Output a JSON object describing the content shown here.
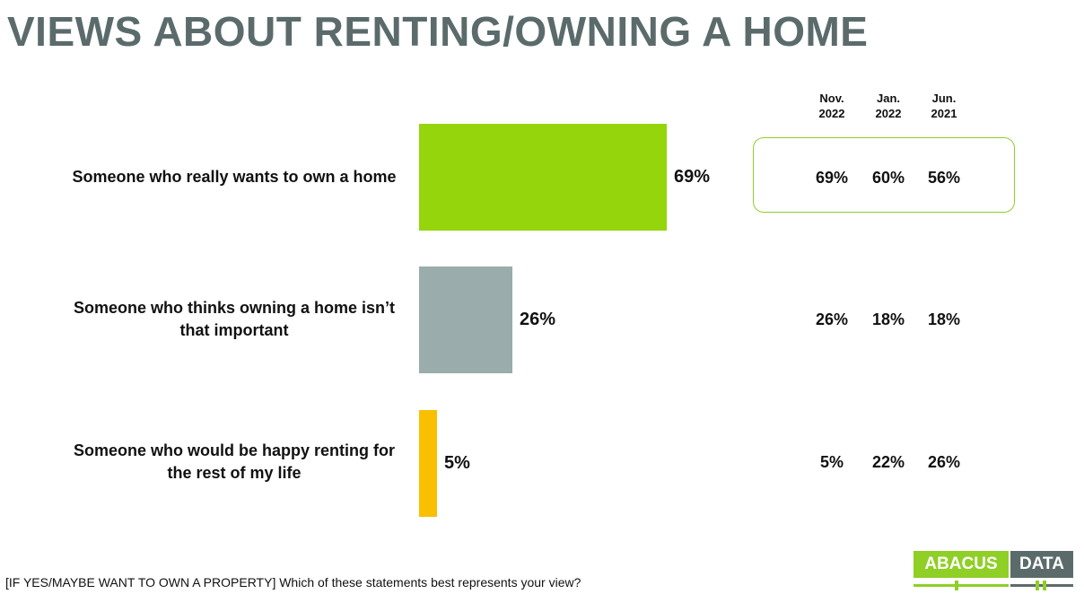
{
  "title": "VIEWS ABOUT RENTING/OWNING A HOME",
  "footnote": "[IF YES/MAYBE WANT TO OWN A PROPERTY] Which of these statements best represents your view?",
  "logo": {
    "left": "ABACUS",
    "right": "DATA"
  },
  "colors": {
    "title": "#5b6b6b",
    "green": "#94d50b",
    "gray": "#9aacab",
    "yellow": "#f9bf00",
    "outline": "#8fcf26"
  },
  "chart_data": {
    "type": "bar",
    "orientation": "horizontal",
    "categories": [
      "Someone who really wants to own a home",
      "Someone who thinks owning a home isn’t that important",
      "Someone who would be happy renting for the rest of my life"
    ],
    "values": [
      69,
      26,
      5
    ],
    "value_labels": [
      "69%",
      "26%",
      "5%"
    ],
    "bar_colors": [
      "#94d50b",
      "#9aacab",
      "#f9bf00"
    ],
    "xlim": [
      0,
      100
    ]
  },
  "trend_table": {
    "columns": [
      {
        "line1": "Nov.",
        "line2": "2022"
      },
      {
        "line1": "Jan.",
        "line2": "2022"
      },
      {
        "line1": "Jun.",
        "line2": "2021"
      }
    ],
    "rows": [
      [
        "69%",
        "60%",
        "56%"
      ],
      [
        "26%",
        "18%",
        "18%"
      ],
      [
        "5%",
        "22%",
        "26%"
      ]
    ]
  }
}
